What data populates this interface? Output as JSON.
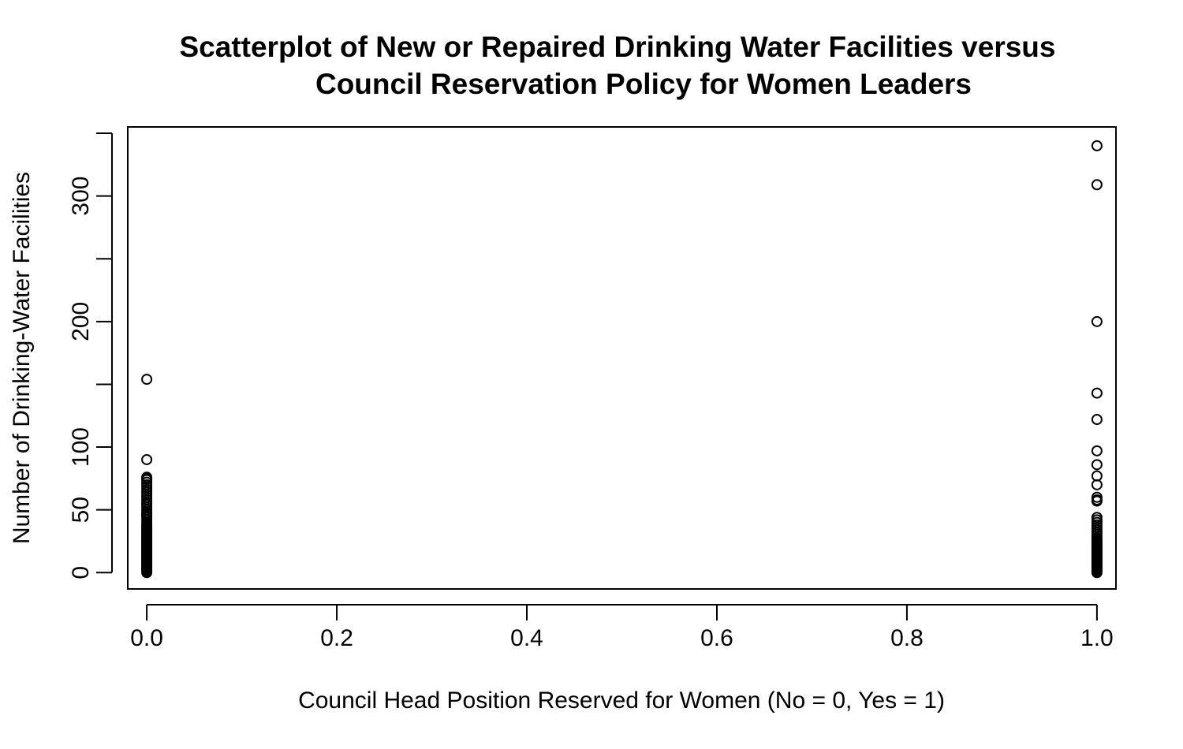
{
  "chart_data": {
    "type": "scatter",
    "title": "Scatterplot of New or Repaired Drinking Water Facilities versus Council Reservation Policy for Women Leaders",
    "title_lines": [
      "Scatterplot of New or Repaired Drinking Water Facilities versus",
      "Council Reservation Policy for Women Leaders"
    ],
    "xlabel": "Council Head Position Reserved for Women (No = 0, Yes = 1)",
    "ylabel": "Number of Drinking-Water Facilities",
    "xlim": [
      -0.02,
      1.02
    ],
    "ylim": [
      -13,
      355
    ],
    "x_ticks": [
      0,
      0.2,
      0.4,
      0.6,
      0.8,
      1.0
    ],
    "x_tick_labels": [
      "0.0",
      "0.2",
      "0.4",
      "0.6",
      "0.8",
      "1.0"
    ],
    "y_ticks": [
      0,
      50,
      100,
      150,
      200,
      250,
      300,
      350
    ],
    "y_tick_labels": [
      "0",
      "50",
      "100",
      "",
      "200",
      "",
      "300",
      ""
    ],
    "grid": false,
    "legend": "none",
    "marker": "open-circle",
    "series": [
      {
        "x_value": 0,
        "values": [
          0,
          1,
          2,
          3,
          4,
          5,
          6,
          7,
          8,
          9,
          10,
          11,
          12,
          13,
          14,
          15,
          16,
          17,
          18,
          19,
          20,
          21,
          22,
          23,
          24,
          25,
          26,
          27,
          28,
          29,
          30,
          31,
          32,
          33,
          34,
          35,
          36,
          37,
          38,
          40,
          42,
          44,
          45,
          46,
          47,
          48,
          50,
          52,
          54,
          55,
          56,
          58,
          60,
          62,
          64,
          66,
          68,
          70,
          72,
          74,
          75,
          76,
          90,
          154
        ]
      },
      {
        "x_value": 1,
        "values": [
          0,
          1,
          2,
          3,
          4,
          5,
          6,
          7,
          8,
          9,
          10,
          11,
          12,
          13,
          14,
          15,
          16,
          17,
          18,
          19,
          20,
          21,
          22,
          23,
          24,
          25,
          26,
          27,
          28,
          30,
          32,
          34,
          36,
          38,
          40,
          42,
          44,
          57,
          58,
          60,
          70,
          77,
          86,
          97,
          122,
          143,
          200,
          309,
          340
        ]
      }
    ]
  }
}
